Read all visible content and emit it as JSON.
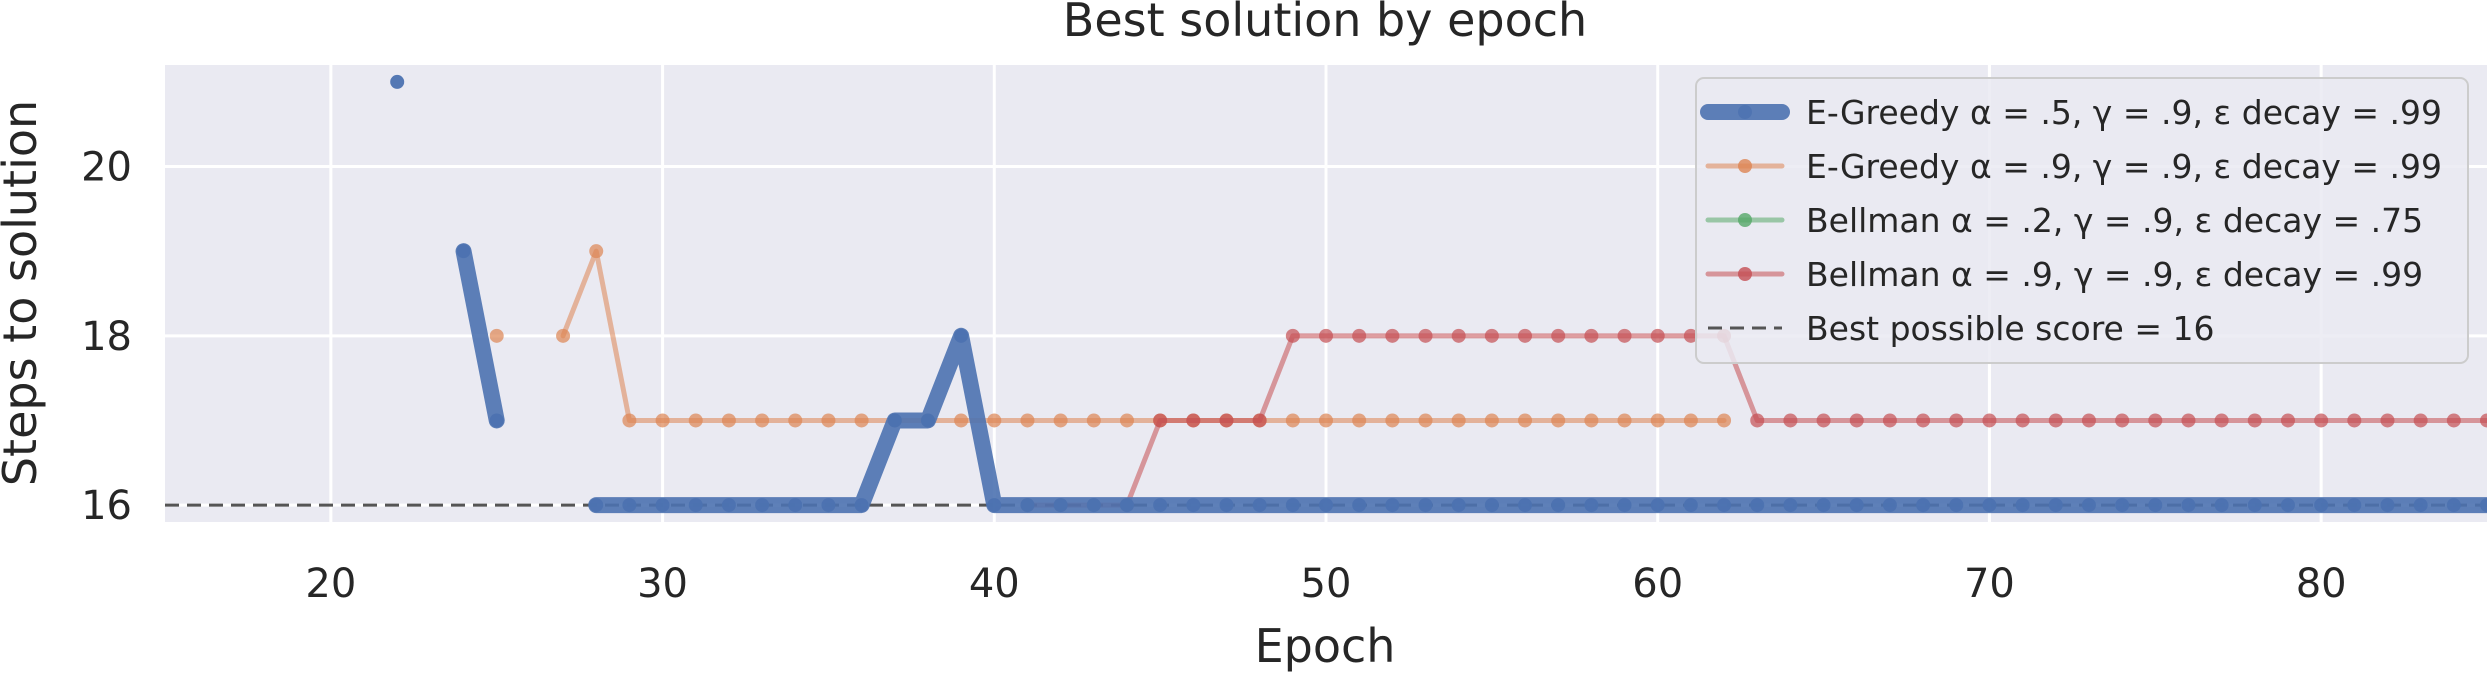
{
  "chart_data": {
    "type": "line",
    "title": "Best solution by epoch",
    "xlabel": "Epoch",
    "ylabel": "Steps to solution",
    "xlim": [
      15,
      85
    ],
    "ylim": [
      15.8,
      21.2
    ],
    "xticks": [
      20,
      30,
      40,
      50,
      60,
      70,
      80
    ],
    "yticks": [
      16,
      18,
      20
    ],
    "grid": true,
    "legend_position": "top-right",
    "series": [
      {
        "name": "E-Greedy α = .5, γ = .9, ε decay = .99",
        "color": "#4c72b0",
        "x": [
          22,
          null,
          24,
          25,
          null,
          28,
          29,
          30,
          31,
          32,
          33,
          34,
          35,
          36,
          37,
          38,
          39,
          40,
          41,
          42,
          43,
          44,
          45,
          46,
          47,
          48,
          49,
          50,
          51,
          52,
          53,
          54,
          55,
          56,
          57,
          58,
          59,
          60,
          61,
          62,
          63,
          64,
          65,
          66,
          67,
          68,
          69,
          70,
          71,
          72,
          73,
          74,
          75,
          76,
          77,
          78,
          79,
          80,
          81,
          82,
          83,
          84,
          85
        ],
        "y": [
          21,
          null,
          19,
          17,
          null,
          16,
          16,
          16,
          16,
          16,
          16,
          16,
          16,
          16,
          17,
          17,
          18,
          16,
          16,
          16,
          16,
          16,
          16,
          16,
          16,
          16,
          16,
          16,
          16,
          16,
          16,
          16,
          16,
          16,
          16,
          16,
          16,
          16,
          16,
          16,
          16,
          16,
          16,
          16,
          16,
          16,
          16,
          16,
          16,
          16,
          16,
          16,
          16,
          16,
          16,
          16,
          16,
          16,
          16,
          16,
          16,
          16,
          16
        ]
      },
      {
        "name": "E-Greedy α = .9, γ = .9, ε decay = .99",
        "color": "#dd8452",
        "x": [
          25,
          null,
          27,
          28,
          29,
          30,
          31,
          32,
          33,
          34,
          35,
          36,
          37,
          38,
          39,
          40,
          41,
          42,
          43,
          44,
          45,
          46,
          47,
          48,
          49,
          50,
          51,
          52,
          53,
          54,
          55,
          56,
          57,
          58,
          59,
          60,
          61,
          62
        ],
        "y": [
          18,
          null,
          18,
          19,
          17,
          17,
          17,
          17,
          17,
          17,
          17,
          17,
          17,
          17,
          17,
          17,
          17,
          17,
          17,
          17,
          17,
          17,
          17,
          17,
          17,
          17,
          17,
          17,
          17,
          17,
          17,
          17,
          17,
          17,
          17,
          17,
          17,
          17
        ]
      },
      {
        "name": "Bellman α = .2, γ = .9, ε decay = .75",
        "color": "#55a868",
        "x": [],
        "y": []
      },
      {
        "name": "Bellman α = .9, γ = .9, ε decay = .99",
        "color": "#c44e52",
        "x": [
          41,
          42,
          43,
          44,
          45,
          46,
          47,
          48,
          49,
          50,
          51,
          52,
          53,
          54,
          55,
          56,
          57,
          58,
          59,
          60,
          61,
          62,
          63,
          64,
          65,
          66,
          67,
          68,
          69,
          70,
          71,
          72,
          73,
          74,
          75,
          76,
          77,
          78,
          79,
          80,
          81,
          82,
          83,
          84,
          85
        ],
        "y": [
          16,
          16,
          16,
          16,
          17,
          17,
          17,
          17,
          18,
          18,
          18,
          18,
          18,
          18,
          18,
          18,
          18,
          18,
          18,
          18,
          18,
          18,
          17,
          17,
          17,
          17,
          17,
          17,
          17,
          17,
          17,
          17,
          17,
          17,
          17,
          17,
          17,
          17,
          17,
          17,
          17,
          17,
          17,
          17,
          17
        ]
      }
    ],
    "reference_line": {
      "name": "Best possible score = 16",
      "y": 16,
      "color": "#555555",
      "style": "dashed"
    }
  }
}
